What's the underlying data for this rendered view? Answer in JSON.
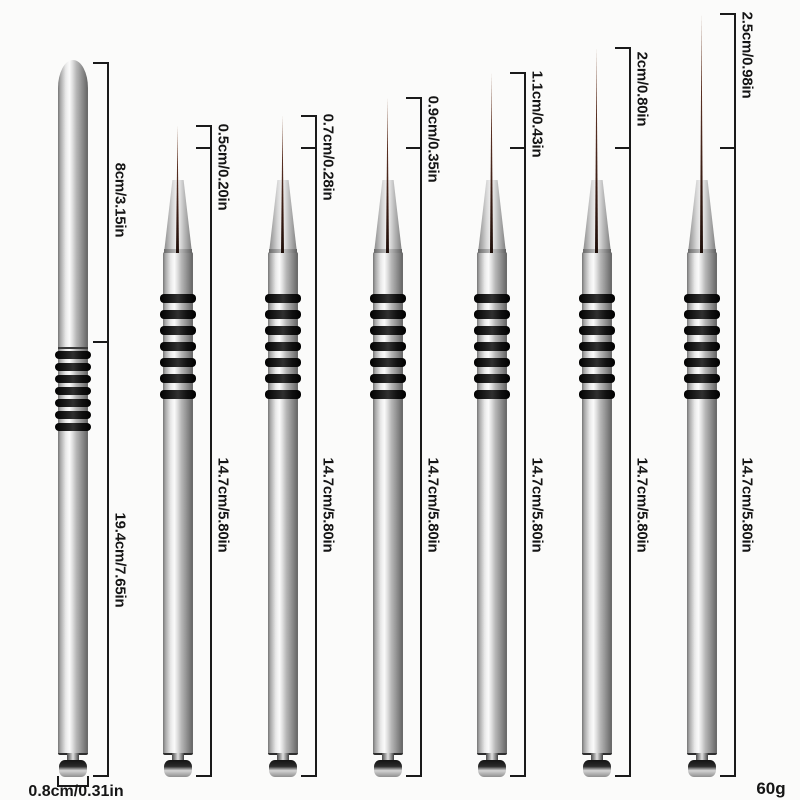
{
  "product": {
    "description": "liner-brush-set-dimension-diagram",
    "weight_label": "60g",
    "items": [
      {
        "name": "large-liner-pen",
        "tip": "8cm/3.15in",
        "body": "19.4cm/7.65in",
        "base_width": "0.8cm/0.31in"
      },
      {
        "name": "liner-brush-1",
        "tip": "0.5cm/0.20in",
        "body": "14.7cm/5.80in"
      },
      {
        "name": "liner-brush-2",
        "tip": "0.7cm/0.28in",
        "body": "14.7cm/5.80in"
      },
      {
        "name": "liner-brush-3",
        "tip": "0.9cm/0.35in",
        "body": "14.7cm/5.80in"
      },
      {
        "name": "liner-brush-4",
        "tip": "1.1cm/0.43in",
        "body": "14.7cm/5.80in"
      },
      {
        "name": "liner-brush-5",
        "tip": "2cm/0.80in",
        "body": "14.7cm/5.80in"
      },
      {
        "name": "liner-brush-6",
        "tip": "2.5cm/0.98in",
        "body": "14.7cm/5.80in"
      }
    ],
    "colors": {
      "background": "#fbfbfa",
      "dimension_line": "#1a1a1a",
      "text": "#151515",
      "grip_ring": "#0c0c0c",
      "bristle": "#46231a",
      "metal_highlight": "#fbfbfb",
      "metal_shadow": "#6b6b6b"
    }
  }
}
